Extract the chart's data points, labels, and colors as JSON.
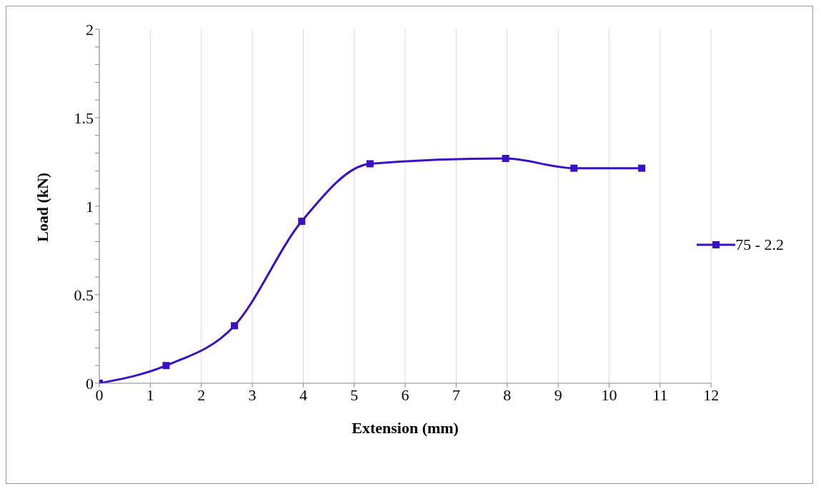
{
  "chart_data": {
    "type": "line",
    "xlabel": "Extension (mm)",
    "ylabel": "Load (kN)",
    "x": [
      0,
      1.31,
      2.65,
      3.97,
      5.31,
      7.97,
      9.31,
      10.64
    ],
    "series": [
      {
        "name": "75 - 2.2",
        "color": "#3a10c8",
        "values": [
          0,
          0.1,
          0.325,
          0.915,
          1.24,
          1.27,
          1.215,
          1.215
        ]
      }
    ],
    "xlim": [
      0,
      12
    ],
    "xticks": [
      0,
      1,
      2,
      3,
      4,
      5,
      6,
      7,
      8,
      9,
      10,
      11,
      12
    ],
    "ylim": [
      0,
      2
    ],
    "yticks": [
      0,
      {
        "value": 0.1,
        "label": null
      },
      {
        "value": 0.2,
        "label": null
      },
      {
        "value": 0.3,
        "label": null
      },
      {
        "value": 0.4,
        "label": null
      },
      0.5,
      {
        "value": 0.6,
        "label": null
      },
      {
        "value": 0.7,
        "label": null
      },
      {
        "value": 0.8,
        "label": null
      },
      {
        "value": 0.9,
        "label": null
      },
      1,
      {
        "value": 1.1,
        "label": null
      },
      {
        "value": 1.2,
        "label": null
      },
      {
        "value": 1.3,
        "label": null
      },
      {
        "value": 1.4,
        "label": null
      },
      1.5,
      {
        "value": 1.6,
        "label": null
      },
      {
        "value": 1.7,
        "label": null
      },
      {
        "value": 1.8,
        "label": null
      },
      {
        "value": 1.9,
        "label": null
      },
      2
    ],
    "grid": "x",
    "legend": "right",
    "marker": "square",
    "line_style": "solid"
  }
}
